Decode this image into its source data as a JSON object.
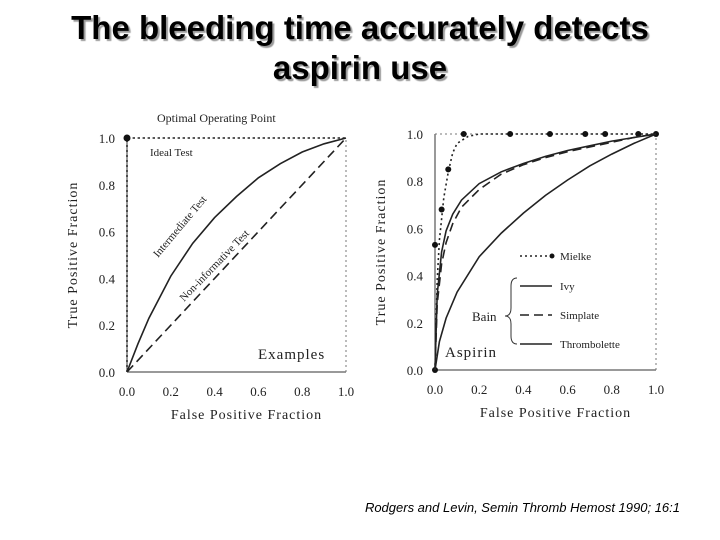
{
  "slide": {
    "title_line1": "The bleeding time accurately detects",
    "title_line2": "aspirin use",
    "citation": "Rodgers and Levin, Semin Thromb Hemost 1990; 16:1"
  },
  "chart_data": [
    {
      "type": "line",
      "xlabel": "False Positive Fraction",
      "ylabel": "True Positive Fraction",
      "xlim": [
        0,
        1
      ],
      "ylim": [
        0,
        1
      ],
      "xticks": [
        "0.0",
        "0.2",
        "0.4",
        "0.6",
        "0.8",
        "1.0"
      ],
      "yticks": [
        "0.0",
        "0.2",
        "0.4",
        "0.6",
        "0.8",
        "1.0"
      ],
      "annotations": [
        "Optimal Operating Point",
        "Ideal Test",
        "Intermediate Test",
        "Non-informative Test",
        "Examples"
      ],
      "series": [
        {
          "name": "Ideal Test",
          "style": "dotted",
          "x": [
            0,
            0,
            1
          ],
          "y": [
            0,
            1,
            1
          ]
        },
        {
          "name": "Intermediate Test",
          "style": "solid",
          "x": [
            0,
            0.05,
            0.1,
            0.2,
            0.3,
            0.4,
            0.5,
            0.6,
            0.7,
            0.8,
            0.9,
            1.0
          ],
          "y": [
            0,
            0.12,
            0.23,
            0.41,
            0.55,
            0.66,
            0.75,
            0.83,
            0.89,
            0.94,
            0.975,
            1.0
          ]
        },
        {
          "name": "Non-informative Test",
          "style": "dashed",
          "x": [
            0,
            1
          ],
          "y": [
            0,
            1
          ]
        }
      ],
      "points": [
        {
          "x": 0,
          "y": 1
        }
      ]
    },
    {
      "type": "line",
      "xlabel": "False Positive Fraction",
      "ylabel": "True Positive Fraction",
      "xlim": [
        0,
        1
      ],
      "ylim": [
        0,
        1
      ],
      "xticks": [
        "0.0",
        "0.2",
        "0.4",
        "0.6",
        "0.8",
        "1.0"
      ],
      "yticks": [
        "0.0",
        "0.2",
        "0.4",
        "0.6",
        "0.8",
        "1.0"
      ],
      "annotations": [
        "Bain",
        "Aspirin"
      ],
      "legend_position": "right",
      "series": [
        {
          "name": "Mielke",
          "style": "dotted",
          "x": [
            0,
            0.01,
            0.02,
            0.04,
            0.06,
            0.08,
            0.1,
            0.15,
            0.2,
            1.0
          ],
          "y": [
            0,
            0.38,
            0.55,
            0.73,
            0.84,
            0.92,
            0.96,
            0.99,
            1.0,
            1.0
          ],
          "points_x": [
            0.0,
            0.0,
            0.03,
            0.06,
            0.13,
            0.34,
            0.52,
            0.68,
            0.77,
            0.92,
            1.0
          ],
          "points_y": [
            0.0,
            0.53,
            0.68,
            0.85,
            1.0,
            1.0,
            1.0,
            1.0,
            1.0,
            1.0,
            1.0
          ]
        },
        {
          "name": "Ivy",
          "style": "solid",
          "x": [
            0,
            0.01,
            0.03,
            0.05,
            0.08,
            0.12,
            0.2,
            0.3,
            0.4,
            0.5,
            0.6,
            0.7,
            0.8,
            0.9,
            1.0
          ],
          "y": [
            0,
            0.32,
            0.5,
            0.59,
            0.66,
            0.72,
            0.79,
            0.84,
            0.875,
            0.905,
            0.93,
            0.95,
            0.97,
            0.985,
            1.0
          ]
        },
        {
          "name": "Simplate",
          "style": "dashed",
          "x": [
            0,
            0.01,
            0.03,
            0.05,
            0.08,
            0.12,
            0.2,
            0.3,
            0.4,
            0.5,
            0.6,
            0.7,
            0.8,
            0.9,
            1.0
          ],
          "y": [
            0,
            0.28,
            0.45,
            0.54,
            0.62,
            0.69,
            0.765,
            0.83,
            0.87,
            0.9,
            0.925,
            0.945,
            0.965,
            0.985,
            1.0
          ]
        },
        {
          "name": "Thrombolette",
          "style": "solid",
          "x": [
            0,
            0.02,
            0.05,
            0.1,
            0.2,
            0.3,
            0.4,
            0.5,
            0.6,
            0.7,
            0.8,
            0.9,
            1.0
          ],
          "y": [
            0,
            0.12,
            0.22,
            0.33,
            0.48,
            0.58,
            0.665,
            0.74,
            0.805,
            0.865,
            0.915,
            0.96,
            1.0
          ]
        }
      ]
    }
  ]
}
